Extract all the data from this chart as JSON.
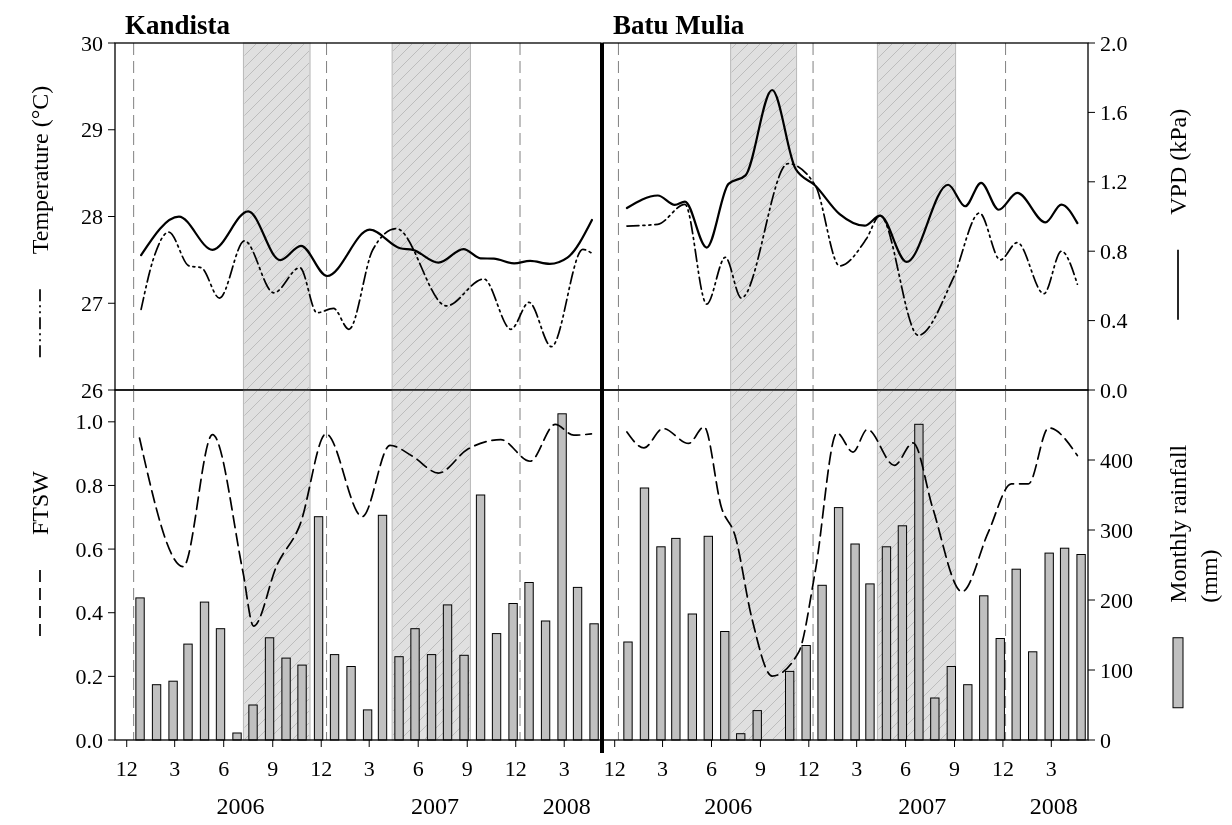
{
  "chart_data": [
    {
      "type": "line",
      "title": "Kandista",
      "ylabel": "Temperature (°C)",
      "xlim": [
        "2005-11-09",
        "2008-05-09"
      ],
      "ylim": [
        26,
        30
      ],
      "yticks": [
        26,
        27,
        28,
        29,
        30
      ],
      "y2lim": [
        0,
        2
      ],
      "tick_labels": "y",
      "bands": [
        {
          "axis": "x",
          "from": "2006-07-08",
          "to": "2006-11-10",
          "color": "#e0e0e0"
        },
        {
          "axis": "x",
          "from": "2007-04-13",
          "to": "2007-09-07",
          "color": "#e0e0e0"
        }
      ],
      "ref_lines": [
        {
          "axis": "x",
          "value": "2005-12-14",
          "color": "#808080",
          "line_style": "dashed"
        },
        {
          "axis": "x",
          "value": "2006-12-11",
          "color": "#808080",
          "line_style": "dashed"
        },
        {
          "axis": "x",
          "value": "2007-12-09",
          "color": "#808080",
          "line_style": "dashed"
        }
      ],
      "series": [
        {
          "color": "#000000",
          "line_style": "dashdotdot",
          "x": [
            "2005-12-28",
            "2006-01-20",
            "2006-02-18",
            "2006-03-28",
            "2006-04-20",
            "2006-05-24",
            "2006-07-10",
            "2006-09-03",
            "2006-10-22",
            "2006-11-23",
            "2006-12-24",
            "2007-01-22",
            "2007-03-08",
            "2007-04-21",
            "2007-07-24",
            "2007-10-02",
            "2007-11-22",
            "2007-12-26",
            "2008-02-06",
            "2008-04-05",
            "2008-04-21"
          ],
          "values": [
            26.93,
            27.51,
            27.82,
            27.43,
            27.41,
            27.06,
            27.72,
            27.12,
            27.41,
            26.89,
            26.94,
            26.7,
            27.62,
            27.86,
            26.97,
            27.28,
            26.7,
            27.01,
            26.5,
            27.62,
            27.58
          ]
        },
        {
          "axis": "y2",
          "color": "#000000",
          "line_style": "solid",
          "x": [
            "2005-12-28",
            "2006-03-09",
            "2006-05-11",
            "2006-07-17",
            "2006-09-15",
            "2006-10-24",
            "2006-12-12",
            "2007-03-02",
            "2007-04-28",
            "2007-05-22",
            "2007-07-09",
            "2007-08-25",
            "2007-09-26",
            "2007-10-21",
            "2007-11-28",
            "2007-12-28",
            "2008-02-03",
            "2008-03-07",
            "2008-04-22"
          ],
          "values": [
            0.777,
            0.999,
            0.808,
            1.03,
            0.748,
            0.831,
            0.657,
            0.924,
            0.817,
            0.808,
            0.734,
            0.812,
            0.759,
            0.757,
            0.73,
            0.744,
            0.727,
            0.763,
            0.98
          ]
        }
      ]
    },
    {
      "type": "line",
      "title": "Batu Mulia",
      "y2label": "VPD (kPa)",
      "xlim": [
        "2005-11-09",
        "2008-05-09"
      ],
      "ylim": [
        26,
        30
      ],
      "y2lim": [
        0,
        2
      ],
      "y2ticks": [
        {
          "value": 0,
          "label": "0.0"
        },
        {
          "value": 0.4,
          "label": "0.4"
        },
        {
          "value": 0.8,
          "label": "0.8"
        },
        {
          "value": 1.2,
          "label": "1.2"
        },
        {
          "value": 1.6,
          "label": "1.6"
        },
        {
          "value": 2,
          "label": "2.0"
        }
      ],
      "tick_labels": "y",
      "bands": [
        {
          "axis": "x",
          "from": "2006-07-07",
          "to": "2006-11-08",
          "color": "#e0e0e0"
        },
        {
          "axis": "x",
          "from": "2007-04-09",
          "to": "2007-09-03",
          "color": "#e0e0e0"
        }
      ],
      "ref_lines": [
        {
          "axis": "x",
          "value": "2005-12-08",
          "color": "#808080",
          "line_style": "dashed"
        },
        {
          "axis": "x",
          "value": "2006-12-09",
          "color": "#808080",
          "line_style": "dashed"
        },
        {
          "axis": "x",
          "value": "2007-12-06",
          "color": "#808080",
          "line_style": "dashed"
        }
      ],
      "series": [
        {
          "color": "#000000",
          "line_style": "dashdotdot",
          "x": [
            "2005-12-24",
            "2006-02-20",
            "2006-04-12",
            "2006-05-23",
            "2006-06-27",
            "2006-07-27",
            "2006-10-23",
            "2006-12-13",
            "2007-01-28",
            "2007-03-19",
            "2007-04-14",
            "2007-06-25",
            "2007-08-29",
            "2007-10-18",
            "2007-11-26",
            "2007-12-28",
            "2008-02-16",
            "2008-03-20",
            "2008-04-19"
          ],
          "values": [
            27.89,
            27.91,
            28.14,
            26.99,
            27.53,
            27.06,
            28.61,
            28.36,
            27.43,
            27.74,
            28.01,
            26.63,
            27.28,
            28.04,
            27.5,
            27.7,
            27.11,
            27.6,
            27.22
          ]
        },
        {
          "axis": "y2",
          "color": "#000000",
          "line_style": "solid",
          "x": [
            "2005-12-24",
            "2006-02-20",
            "2006-03-24",
            "2006-04-12",
            "2006-05-23",
            "2006-07-03",
            "2006-08-04",
            "2006-09-23",
            "2006-11-06",
            "2006-12-13",
            "2007-01-28",
            "2007-03-16",
            "2007-04-14",
            "2007-06-03",
            "2007-08-20",
            "2007-09-21",
            "2007-10-21",
            "2007-11-23",
            "2007-12-28",
            "2008-02-19",
            "2008-03-20",
            "2008-04-19"
          ],
          "values": [
            1.049,
            1.121,
            1.067,
            1.086,
            0.821,
            1.188,
            1.237,
            1.729,
            1.275,
            1.179,
            1.014,
            0.947,
            1.005,
            0.738,
            1.183,
            1.059,
            1.194,
            1.039,
            1.136,
            0.966,
            1.069,
            0.962
          ]
        }
      ]
    },
    {
      "type": "bar",
      "ylabel": "FTSW",
      "xlim": [
        "2005-11-09",
        "2008-05-09"
      ],
      "xticks": [
        {
          "value": "2005-12-01",
          "label": "12"
        },
        {
          "value": "2006-03-01",
          "label": "3"
        },
        {
          "value": "2006-06-01",
          "label": "6"
        },
        {
          "value": "2006-09-01",
          "label": "9"
        },
        {
          "value": "2006-12-01",
          "label": "12"
        },
        {
          "value": "2007-03-01",
          "label": "3"
        },
        {
          "value": "2007-06-01",
          "label": "6"
        },
        {
          "value": "2007-09-01",
          "label": "9"
        },
        {
          "value": "2007-12-01",
          "label": "12"
        },
        {
          "value": "2008-03-01",
          "label": "3"
        }
      ],
      "ylim": [
        0,
        1.1
      ],
      "yticks": [
        {
          "value": 0,
          "label": "0.0"
        },
        {
          "value": 0.2,
          "label": "0.2"
        },
        {
          "value": 0.4,
          "label": "0.4"
        },
        {
          "value": 0.6,
          "label": "0.6"
        },
        {
          "value": 0.8,
          "label": "0.8"
        },
        {
          "value": 1,
          "label": "1.0"
        }
      ],
      "y2lim": [
        0,
        500
      ],
      "annotations": [
        "2006",
        "2007",
        "2008"
      ],
      "bands": [
        {
          "axis": "x",
          "from": "2006-07-08",
          "to": "2006-11-10",
          "color": "#e0e0e0"
        },
        {
          "axis": "x",
          "from": "2007-04-13",
          "to": "2007-09-07",
          "color": "#e0e0e0"
        }
      ],
      "ref_lines": [
        {
          "axis": "x",
          "value": "2005-12-14",
          "color": "#808080",
          "line_style": "dashed"
        },
        {
          "axis": "x",
          "value": "2006-12-11",
          "color": "#808080",
          "line_style": "dashed"
        },
        {
          "axis": "x",
          "value": "2007-12-09",
          "color": "#808080",
          "line_style": "dashed"
        }
      ],
      "series": [
        {
          "axis": "y2",
          "color": "#c0c0c0",
          "x": [
            "2005-12-26",
            "2006-01-26",
            "2006-02-26",
            "2006-03-26",
            "2006-04-26",
            "2006-05-26",
            "2006-06-26",
            "2006-07-26",
            "2006-08-26",
            "2006-09-26",
            "2006-10-26",
            "2006-11-26",
            "2006-12-26",
            "2007-01-26",
            "2007-02-26",
            "2007-03-26",
            "2007-04-26",
            "2007-05-26",
            "2007-06-26",
            "2007-07-26",
            "2007-08-26",
            "2007-09-26",
            "2007-10-26",
            "2007-11-26",
            "2007-12-26",
            "2008-01-26",
            "2008-02-26",
            "2008-03-26",
            "2008-04-26"
          ],
          "values": [
            203,
            79,
            84,
            137,
            197,
            159,
            10,
            50,
            146,
            117,
            107,
            319,
            122,
            105,
            43,
            321,
            119,
            159,
            122,
            193,
            121,
            350,
            152,
            195,
            225,
            170,
            466,
            218,
            166
          ]
        },
        {
          "type": "line",
          "color": "#000000",
          "line_style": "dashed",
          "x": [
            "2005-12-25",
            "2006-03-17",
            "2006-05-11",
            "2006-07-07",
            "2006-07-27",
            "2006-09-09",
            "2006-10-22",
            "2006-12-10",
            "2007-02-16",
            "2007-04-09",
            "2007-05-22",
            "2007-07-09",
            "2007-09-01",
            "2007-11-03",
            "2007-12-28",
            "2008-02-13",
            "2008-03-19",
            "2008-04-21"
          ],
          "values": [
            0.949,
            0.545,
            0.96,
            0.529,
            0.358,
            0.55,
            0.676,
            0.962,
            0.702,
            0.926,
            0.891,
            0.839,
            0.913,
            0.944,
            0.876,
            0.992,
            0.958,
            0.962
          ]
        }
      ]
    },
    {
      "type": "bar",
      "y2label": "Monthly rainfall (mm)",
      "xlim": [
        "2005-11-09",
        "2008-05-09"
      ],
      "xticks": [
        {
          "value": "2005-12-01",
          "label": "12"
        },
        {
          "value": "2006-03-01",
          "label": "3"
        },
        {
          "value": "2006-06-01",
          "label": "6"
        },
        {
          "value": "2006-09-01",
          "label": "9"
        },
        {
          "value": "2006-12-01",
          "label": "12"
        },
        {
          "value": "2007-03-01",
          "label": "3"
        },
        {
          "value": "2007-06-01",
          "label": "6"
        },
        {
          "value": "2007-09-01",
          "label": "9"
        },
        {
          "value": "2007-12-01",
          "label": "12"
        },
        {
          "value": "2008-03-01",
          "label": "3"
        }
      ],
      "ylim": [
        0,
        1.1
      ],
      "y2lim": [
        0,
        500
      ],
      "y2ticks": [
        0,
        100,
        200,
        300,
        400
      ],
      "annotations": [
        "2006",
        "2007",
        "2008"
      ],
      "bands": [
        {
          "axis": "x",
          "from": "2006-07-07",
          "to": "2006-11-08",
          "color": "#e0e0e0"
        },
        {
          "axis": "x",
          "from": "2007-04-09",
          "to": "2007-09-03",
          "color": "#e0e0e0"
        }
      ],
      "ref_lines": [
        {
          "axis": "x",
          "value": "2005-12-08",
          "color": "#808080",
          "line_style": "dashed"
        },
        {
          "axis": "x",
          "value": "2006-12-09",
          "color": "#808080",
          "line_style": "dashed"
        },
        {
          "axis": "x",
          "value": "2007-12-06",
          "color": "#808080",
          "line_style": "dashed"
        }
      ],
      "series": [
        {
          "axis": "y2",
          "color": "#c0c0c0",
          "x": [
            "2005-12-26",
            "2006-01-26",
            "2006-02-26",
            "2006-03-26",
            "2006-04-26",
            "2006-05-26",
            "2006-06-26",
            "2006-07-26",
            "2006-08-26",
            "2006-09-26",
            "2006-10-26",
            "2006-11-26",
            "2006-12-26",
            "2007-01-26",
            "2007-02-26",
            "2007-03-26",
            "2007-04-26",
            "2007-05-26",
            "2007-06-26",
            "2007-07-26",
            "2007-08-26",
            "2007-09-26",
            "2007-10-26",
            "2007-11-26",
            "2007-12-26",
            "2008-01-26",
            "2008-02-26",
            "2008-03-26",
            "2008-04-26"
          ],
          "values": [
            140,
            360,
            276,
            288,
            180,
            291,
            155,
            9,
            42,
            null,
            98,
            135,
            221,
            332,
            280,
            223,
            276,
            306,
            451,
            60,
            105,
            79,
            206,
            145,
            244,
            126,
            267,
            274,
            265
          ]
        },
        {
          "type": "line",
          "color": "#000000",
          "line_style": "dashed",
          "x": [
            "2005-12-24",
            "2006-01-25",
            "2006-03-02",
            "2006-04-19",
            "2006-05-18",
            "2006-06-20",
            "2006-07-15",
            "2006-08-16",
            "2006-09-23",
            "2006-11-12",
            "2006-12-13",
            "2007-01-23",
            "2007-02-22",
            "2007-03-21",
            "2007-05-11",
            "2007-06-15",
            "2007-07-22",
            "2007-09-15",
            "2007-11-04",
            "2007-12-17",
            "2008-01-18",
            "2008-02-25",
            "2008-04-19"
          ],
          "values": [
            0.968,
            0.918,
            0.979,
            0.932,
            0.984,
            0.729,
            0.644,
            0.382,
            0.201,
            0.276,
            0.529,
            0.965,
            0.905,
            0.976,
            0.863,
            0.934,
            0.729,
            0.466,
            0.655,
            0.805,
            0.805,
            0.981,
            0.894
          ]
        }
      ]
    }
  ]
}
